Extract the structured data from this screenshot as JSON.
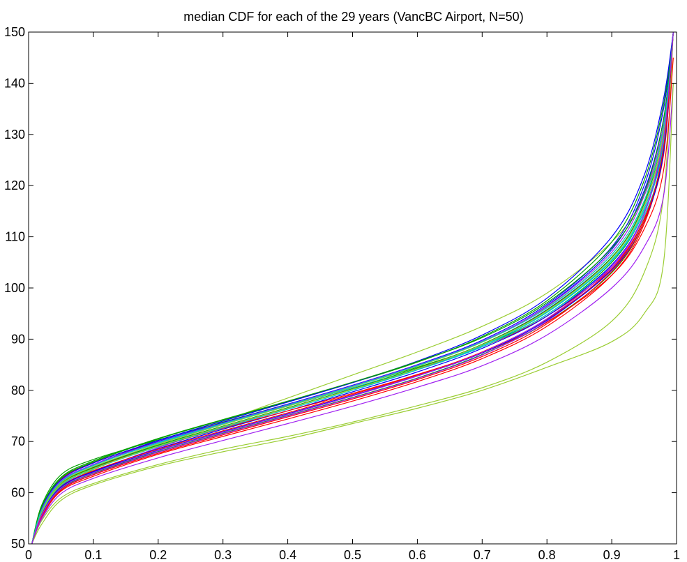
{
  "chart_data": {
    "type": "line",
    "title": "median CDF for each of the 29 years (VancBC Airport, N=50)",
    "xlabel": "",
    "ylabel": "",
    "xlim": [
      0,
      1
    ],
    "ylim": [
      50,
      150
    ],
    "xticks": [
      0,
      0.1,
      0.2,
      0.3,
      0.4,
      0.5,
      0.6,
      0.7,
      0.8,
      0.9,
      1
    ],
    "xtick_labels": [
      "0",
      "0.1",
      "0.2",
      "0.3",
      "0.4",
      "0.5",
      "0.6",
      "0.7",
      "0.8",
      "0.9",
      "1"
    ],
    "yticks": [
      50,
      60,
      70,
      80,
      90,
      100,
      110,
      120,
      130,
      140,
      150
    ],
    "ytick_labels": [
      "50",
      "60",
      "70",
      "80",
      "90",
      "100",
      "110",
      "120",
      "130",
      "140",
      "150"
    ],
    "grid": false,
    "legend": "none",
    "x": [
      0.005,
      0.02,
      0.05,
      0.1,
      0.2,
      0.3,
      0.4,
      0.5,
      0.6,
      0.7,
      0.8,
      0.9,
      0.95,
      0.98,
      0.995
    ],
    "series": [
      {
        "color": "#00a000",
        "values": [
          50,
          57.5,
          63.5,
          66.5,
          70.3,
          73.8,
          77.3,
          80.8,
          84.5,
          88.8,
          94.8,
          105.0,
          115.0,
          128.0,
          150
        ]
      },
      {
        "color": "#ff0000",
        "values": [
          50,
          56.8,
          62.6,
          65.9,
          70.0,
          73.5,
          76.9,
          80.5,
          84.2,
          88.5,
          94.5,
          104.0,
          113.5,
          126.0,
          150
        ]
      },
      {
        "color": "#0000ff",
        "values": [
          50,
          56.0,
          61.5,
          65.0,
          69.5,
          73.3,
          77.0,
          80.8,
          84.8,
          89.5,
          96.5,
          107.5,
          119.0,
          133.0,
          150
        ]
      },
      {
        "color": "#9acd32",
        "values": [
          50,
          55.5,
          61.0,
          64.5,
          69.5,
          74.0,
          78.5,
          83.0,
          87.5,
          92.5,
          99.0,
          109.0,
          118.0,
          131.0,
          150
        ]
      },
      {
        "color": "#a020f0",
        "values": [
          50,
          55.0,
          60.5,
          64.0,
          68.8,
          72.8,
          76.5,
          80.3,
          84.3,
          89.0,
          95.8,
          106.0,
          116.0,
          130.0,
          150
        ]
      },
      {
        "color": "#00c8c8",
        "values": [
          50,
          55.8,
          61.3,
          64.8,
          69.2,
          73.0,
          76.6,
          80.2,
          84.0,
          88.5,
          94.8,
          104.5,
          114.0,
          127.0,
          150
        ]
      },
      {
        "color": "#0000ff",
        "values": [
          50,
          55.5,
          61.0,
          64.2,
          68.6,
          72.4,
          76.0,
          79.7,
          83.6,
          88.2,
          94.5,
          104.5,
          114.5,
          129.0,
          150
        ]
      },
      {
        "color": "#ff0000",
        "values": [
          50,
          55.2,
          60.3,
          63.2,
          67.5,
          71.0,
          74.4,
          77.9,
          81.7,
          86.2,
          92.5,
          102.5,
          112.5,
          127.0,
          150
        ]
      },
      {
        "color": "#00a000",
        "values": [
          50,
          55.6,
          60.8,
          63.8,
          68.0,
          71.6,
          75.1,
          78.6,
          82.4,
          87.0,
          93.3,
          103.0,
          113.0,
          127.5,
          150
        ]
      },
      {
        "color": "#9acd32",
        "values": [
          50,
          54.5,
          59.0,
          61.8,
          65.5,
          68.5,
          71.0,
          73.8,
          77.0,
          80.5,
          85.5,
          93.5,
          103.0,
          118.0,
          150
        ]
      },
      {
        "color": "#a020f0",
        "values": [
          50,
          54.8,
          59.8,
          62.8,
          66.8,
          70.2,
          73.5,
          76.9,
          80.6,
          84.8,
          90.8,
          100.0,
          108.0,
          118.0,
          140
        ]
      },
      {
        "color": "#0000ff",
        "values": [
          50,
          56.5,
          62.0,
          65.5,
          70.0,
          73.7,
          77.3,
          81.0,
          85.0,
          89.8,
          96.8,
          108.0,
          120.0,
          135.0,
          150
        ]
      },
      {
        "color": "#00a000",
        "values": [
          50,
          57.0,
          62.8,
          66.0,
          70.5,
          74.2,
          77.8,
          81.5,
          85.5,
          90.5,
          97.5,
          109.0,
          121.0,
          136.0,
          150
        ]
      },
      {
        "color": "#ff0000",
        "values": [
          50,
          56.3,
          61.8,
          64.9,
          69.0,
          72.6,
          76.0,
          79.4,
          83.1,
          87.3,
          93.3,
          102.5,
          111.5,
          123.0,
          145
        ]
      },
      {
        "color": "#9acd32",
        "values": [
          50,
          53.8,
          58.5,
          61.5,
          65.2,
          68.0,
          70.5,
          73.5,
          76.5,
          80.0,
          84.5,
          89.5,
          95.0,
          105.0,
          140
        ]
      },
      {
        "color": "#00c8c8",
        "values": [
          50,
          56.6,
          62.2,
          65.4,
          69.7,
          73.4,
          76.9,
          80.5,
          84.3,
          88.8,
          95.2,
          105.3,
          115.0,
          128.0,
          150
        ]
      },
      {
        "color": "#a020f0",
        "values": [
          50,
          55.3,
          60.6,
          63.6,
          67.9,
          71.5,
          75.0,
          78.5,
          82.3,
          86.9,
          93.5,
          104.0,
          114.5,
          130.0,
          150
        ]
      },
      {
        "color": "#0000ff",
        "values": [
          50,
          56.9,
          62.5,
          65.8,
          70.2,
          74.0,
          77.7,
          81.5,
          85.7,
          90.8,
          98.0,
          110.0,
          122.0,
          137.0,
          150
        ]
      },
      {
        "color": "#00a000",
        "values": [
          50,
          56.2,
          61.7,
          64.9,
          69.3,
          73.0,
          76.6,
          80.3,
          84.3,
          89.0,
          95.7,
          106.0,
          116.5,
          131.0,
          150
        ]
      },
      {
        "color": "#ff0000",
        "values": [
          50,
          55.9,
          61.2,
          64.3,
          68.5,
          72.1,
          75.6,
          79.2,
          83.0,
          87.5,
          93.9,
          103.7,
          113.5,
          127.0,
          150
        ]
      },
      {
        "color": "#9acd32",
        "values": [
          50,
          56.4,
          61.9,
          65.1,
          69.5,
          73.3,
          76.9,
          80.7,
          84.7,
          89.4,
          96.2,
          106.5,
          117.0,
          131.0,
          150
        ]
      },
      {
        "color": "#00c8c8",
        "values": [
          50,
          56.0,
          61.4,
          64.6,
          69.0,
          72.7,
          76.3,
          80.0,
          84.0,
          88.7,
          95.3,
          105.5,
          115.5,
          129.0,
          150
        ]
      },
      {
        "color": "#a020f0",
        "values": [
          50,
          56.7,
          62.3,
          65.5,
          69.9,
          73.6,
          77.2,
          80.9,
          84.9,
          89.6,
          96.4,
          107.0,
          118.0,
          132.0,
          150
        ]
      },
      {
        "color": "#0000ff",
        "values": [
          50,
          55.7,
          61.1,
          64.1,
          68.3,
          71.9,
          75.4,
          79.0,
          82.8,
          87.3,
          93.7,
          103.5,
          113.0,
          126.5,
          150
        ]
      },
      {
        "color": "#00a000",
        "values": [
          50,
          57.2,
          63.0,
          66.2,
          70.6,
          74.3,
          77.9,
          81.6,
          85.6,
          90.3,
          97.1,
          107.8,
          118.5,
          133.0,
          150
        ]
      },
      {
        "color": "#ff0000",
        "values": [
          50,
          55.4,
          60.5,
          63.5,
          67.7,
          71.3,
          74.8,
          78.3,
          82.1,
          86.6,
          93.0,
          103.2,
          113.0,
          127.5,
          150
        ]
      },
      {
        "color": "#9acd32",
        "values": [
          50,
          56.1,
          61.6,
          64.7,
          69.1,
          72.9,
          76.5,
          80.2,
          84.2,
          88.9,
          95.5,
          105.8,
          116.0,
          130.0,
          150
        ]
      },
      {
        "color": "#00c8c8",
        "values": [
          50,
          56.5,
          62.1,
          65.3,
          69.8,
          73.5,
          77.1,
          80.8,
          84.8,
          89.5,
          96.1,
          106.5,
          117.0,
          131.5,
          150
        ]
      },
      {
        "color": "#a020f0",
        "values": [
          50,
          55.6,
          60.9,
          63.9,
          68.2,
          71.8,
          75.3,
          78.9,
          82.8,
          87.4,
          94.0,
          104.3,
          114.5,
          129.5,
          150
        ]
      }
    ]
  }
}
